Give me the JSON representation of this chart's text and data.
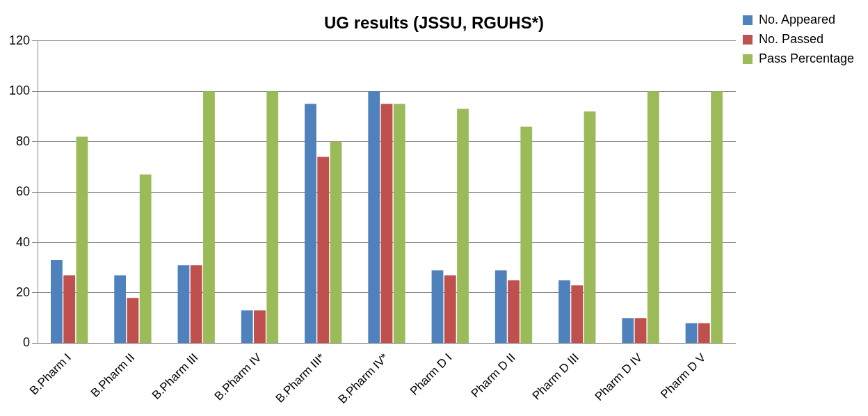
{
  "chart_data": {
    "type": "bar",
    "title": "UG results (JSSU, RGUHS*)",
    "categories": [
      "B.Pharm I",
      "B.Pharm II",
      "B.Pharm III",
      "B.Pharm IV",
      "B.Pharm III*",
      "B.Pharm IV*",
      "Pharm D I",
      "Pharm D II",
      "Pharm D III",
      "Pharm D IV",
      "Pharm D V"
    ],
    "series": [
      {
        "name": "No. Appeared",
        "color": "#4f81bd",
        "values": [
          33,
          27,
          31,
          13,
          95,
          100,
          29,
          29,
          25,
          10,
          8
        ]
      },
      {
        "name": "No. Passed",
        "color": "#c0504d",
        "values": [
          27,
          18,
          31,
          13,
          74,
          95,
          27,
          25,
          23,
          10,
          8
        ]
      },
      {
        "name": "Pass Percentage",
        "color": "#9bbb59",
        "values": [
          82,
          67,
          100,
          100,
          80,
          95,
          93,
          86,
          92,
          100,
          100
        ]
      }
    ],
    "ylim": [
      0,
      120
    ],
    "yticks": [
      0,
      20,
      40,
      60,
      80,
      100,
      120
    ],
    "grid": "y",
    "legend": "right"
  }
}
